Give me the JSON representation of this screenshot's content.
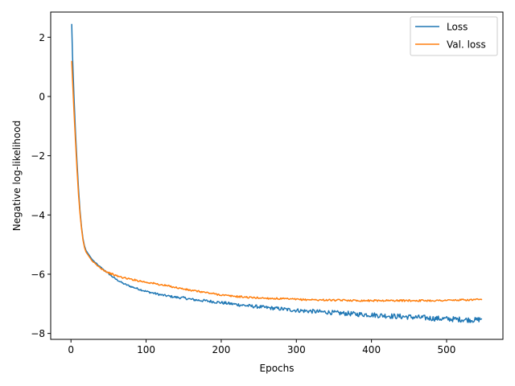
{
  "chart_data": {
    "type": "line",
    "title": "",
    "xlabel": "Epochs",
    "ylabel": "Negative log-likelihood",
    "xlim": [
      -27,
      575
    ],
    "ylim": [
      -8.2,
      2.85
    ],
    "x_ticks": [
      0,
      100,
      200,
      300,
      400,
      500
    ],
    "x_tick_labels": [
      "0",
      "100",
      "200",
      "300",
      "400",
      "500"
    ],
    "y_ticks": [
      2,
      0,
      -2,
      -4,
      -6,
      -8
    ],
    "y_tick_labels": [
      "2",
      "0",
      "−2",
      "−4",
      "−6",
      "−8"
    ],
    "grid": false,
    "legend": {
      "placement": "top-right"
    },
    "colors": {
      "Loss": "#1f77b4",
      "Val. loss": "#ff7f0e"
    },
    "series": [
      {
        "name": "Loss",
        "color": "#1f77b4",
        "points": [
          [
            1,
            2.45
          ],
          [
            2,
            1.4
          ],
          [
            4,
            0.0
          ],
          [
            6,
            -1.2
          ],
          [
            8,
            -2.2
          ],
          [
            10,
            -3.1
          ],
          [
            12,
            -3.85
          ],
          [
            14,
            -4.4
          ],
          [
            16,
            -4.8
          ],
          [
            18,
            -5.05
          ],
          [
            20,
            -5.2
          ],
          [
            24,
            -5.35
          ],
          [
            28,
            -5.5
          ],
          [
            32,
            -5.6
          ],
          [
            36,
            -5.7
          ],
          [
            40,
            -5.78
          ],
          [
            45,
            -5.88
          ],
          [
            50,
            -5.98
          ],
          [
            55,
            -6.08
          ],
          [
            60,
            -6.17
          ],
          [
            70,
            -6.32
          ],
          [
            80,
            -6.42
          ],
          [
            90,
            -6.5
          ],
          [
            100,
            -6.58
          ],
          [
            110,
            -6.64
          ],
          [
            120,
            -6.7
          ],
          [
            130,
            -6.74
          ],
          [
            140,
            -6.78
          ],
          [
            150,
            -6.8
          ],
          [
            160,
            -6.85
          ],
          [
            170,
            -6.88
          ],
          [
            180,
            -6.9
          ],
          [
            190,
            -6.93
          ],
          [
            200,
            -6.96
          ],
          [
            210,
            -6.99
          ],
          [
            220,
            -7.02
          ],
          [
            230,
            -7.05
          ],
          [
            240,
            -7.08
          ],
          [
            250,
            -7.1
          ],
          [
            260,
            -7.13
          ],
          [
            270,
            -7.15
          ],
          [
            280,
            -7.17
          ],
          [
            290,
            -7.2
          ],
          [
            300,
            -7.22
          ],
          [
            310,
            -7.24
          ],
          [
            320,
            -7.25
          ],
          [
            330,
            -7.27
          ],
          [
            340,
            -7.28
          ],
          [
            350,
            -7.3
          ],
          [
            360,
            -7.32
          ],
          [
            370,
            -7.33
          ],
          [
            380,
            -7.35
          ],
          [
            390,
            -7.36
          ],
          [
            400,
            -7.37
          ],
          [
            410,
            -7.39
          ],
          [
            420,
            -7.4
          ],
          [
            430,
            -7.42
          ],
          [
            440,
            -7.43
          ],
          [
            450,
            -7.44
          ],
          [
            460,
            -7.46
          ],
          [
            470,
            -7.47
          ],
          [
            480,
            -7.49
          ],
          [
            490,
            -7.5
          ],
          [
            500,
            -7.51
          ],
          [
            510,
            -7.52
          ],
          [
            520,
            -7.53
          ],
          [
            530,
            -7.54
          ],
          [
            540,
            -7.55
          ],
          [
            547,
            -7.5
          ]
        ]
      },
      {
        "name": "Val. loss",
        "color": "#ff7f0e",
        "points": [
          [
            1,
            1.2
          ],
          [
            2,
            0.6
          ],
          [
            4,
            -0.5
          ],
          [
            6,
            -1.5
          ],
          [
            8,
            -2.45
          ],
          [
            10,
            -3.3
          ],
          [
            12,
            -3.95
          ],
          [
            14,
            -4.45
          ],
          [
            16,
            -4.85
          ],
          [
            18,
            -5.1
          ],
          [
            20,
            -5.25
          ],
          [
            24,
            -5.4
          ],
          [
            28,
            -5.55
          ],
          [
            32,
            -5.65
          ],
          [
            36,
            -5.73
          ],
          [
            40,
            -5.8
          ],
          [
            45,
            -5.88
          ],
          [
            50,
            -5.95
          ],
          [
            55,
            -6.0
          ],
          [
            60,
            -6.05
          ],
          [
            70,
            -6.12
          ],
          [
            80,
            -6.17
          ],
          [
            90,
            -6.22
          ],
          [
            100,
            -6.27
          ],
          [
            110,
            -6.31
          ],
          [
            120,
            -6.36
          ],
          [
            130,
            -6.4
          ],
          [
            140,
            -6.45
          ],
          [
            150,
            -6.5
          ],
          [
            160,
            -6.55
          ],
          [
            170,
            -6.58
          ],
          [
            180,
            -6.62
          ],
          [
            190,
            -6.66
          ],
          [
            200,
            -6.7
          ],
          [
            210,
            -6.73
          ],
          [
            220,
            -6.75
          ],
          [
            230,
            -6.77
          ],
          [
            240,
            -6.79
          ],
          [
            250,
            -6.8
          ],
          [
            260,
            -6.81
          ],
          [
            270,
            -6.82
          ],
          [
            280,
            -6.83
          ],
          [
            290,
            -6.84
          ],
          [
            300,
            -6.85
          ],
          [
            310,
            -6.86
          ],
          [
            320,
            -6.86
          ],
          [
            330,
            -6.87
          ],
          [
            340,
            -6.87
          ],
          [
            350,
            -6.88
          ],
          [
            360,
            -6.88
          ],
          [
            370,
            -6.88
          ],
          [
            380,
            -6.89
          ],
          [
            390,
            -6.89
          ],
          [
            400,
            -6.89
          ],
          [
            410,
            -6.89
          ],
          [
            420,
            -6.89
          ],
          [
            430,
            -6.89
          ],
          [
            440,
            -6.89
          ],
          [
            450,
            -6.89
          ],
          [
            460,
            -6.89
          ],
          [
            470,
            -6.89
          ],
          [
            480,
            -6.89
          ],
          [
            490,
            -6.89
          ],
          [
            500,
            -6.88
          ],
          [
            510,
            -6.88
          ],
          [
            520,
            -6.87
          ],
          [
            530,
            -6.87
          ],
          [
            540,
            -6.86
          ],
          [
            547,
            -6.87
          ]
        ]
      }
    ]
  }
}
